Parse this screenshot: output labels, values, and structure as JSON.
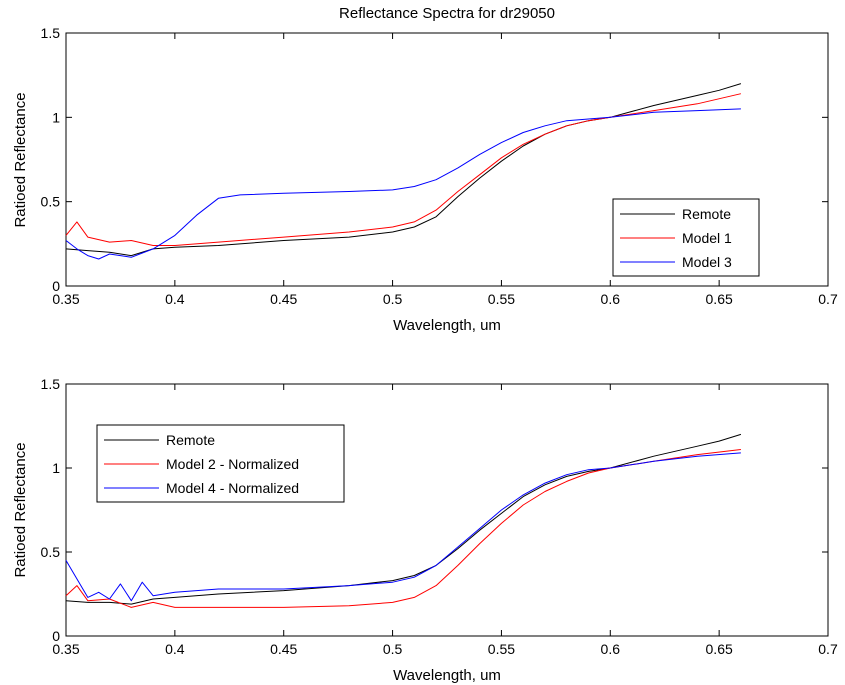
{
  "chart_data": [
    {
      "type": "line",
      "title": "Reflectance Spectra for dr29050",
      "xlabel": "Wavelength, um",
      "ylabel": "Ratioed Reflectance",
      "xlim": [
        0.35,
        0.7
      ],
      "ylim": [
        0,
        1.5
      ],
      "xticks": [
        "0.35",
        "0.4",
        "0.45",
        "0.5",
        "0.55",
        "0.6",
        "0.65",
        "0.7"
      ],
      "yticks": [
        "0",
        "0.5",
        "1",
        "1.5"
      ],
      "legend_position": "lower-right",
      "series": [
        {
          "name": "Remote",
          "color": "#000000",
          "x": [
            0.35,
            0.36,
            0.37,
            0.38,
            0.39,
            0.4,
            0.42,
            0.45,
            0.48,
            0.5,
            0.51,
            0.52,
            0.53,
            0.54,
            0.55,
            0.56,
            0.57,
            0.58,
            0.59,
            0.6,
            0.62,
            0.64,
            0.65,
            0.66
          ],
          "y": [
            0.22,
            0.21,
            0.2,
            0.18,
            0.22,
            0.23,
            0.24,
            0.27,
            0.29,
            0.32,
            0.35,
            0.41,
            0.53,
            0.64,
            0.74,
            0.83,
            0.9,
            0.95,
            0.98,
            1.0,
            1.07,
            1.13,
            1.16,
            1.2
          ]
        },
        {
          "name": "Model 1",
          "color": "#ff0000",
          "x": [
            0.35,
            0.355,
            0.36,
            0.37,
            0.38,
            0.39,
            0.4,
            0.42,
            0.45,
            0.48,
            0.5,
            0.51,
            0.52,
            0.53,
            0.54,
            0.55,
            0.56,
            0.57,
            0.58,
            0.59,
            0.6,
            0.62,
            0.64,
            0.66
          ],
          "y": [
            0.3,
            0.38,
            0.29,
            0.26,
            0.27,
            0.24,
            0.24,
            0.26,
            0.29,
            0.32,
            0.35,
            0.38,
            0.45,
            0.56,
            0.66,
            0.76,
            0.84,
            0.9,
            0.95,
            0.98,
            1.0,
            1.04,
            1.08,
            1.14
          ]
        },
        {
          "name": "Model 3",
          "color": "#0000ff",
          "x": [
            0.35,
            0.355,
            0.36,
            0.365,
            0.37,
            0.38,
            0.39,
            0.4,
            0.41,
            0.42,
            0.43,
            0.45,
            0.48,
            0.5,
            0.51,
            0.52,
            0.53,
            0.54,
            0.55,
            0.56,
            0.57,
            0.58,
            0.59,
            0.6,
            0.62,
            0.64,
            0.66
          ],
          "y": [
            0.27,
            0.22,
            0.18,
            0.16,
            0.19,
            0.17,
            0.22,
            0.3,
            0.42,
            0.52,
            0.54,
            0.55,
            0.56,
            0.57,
            0.59,
            0.63,
            0.7,
            0.78,
            0.85,
            0.91,
            0.95,
            0.98,
            0.99,
            1.0,
            1.03,
            1.04,
            1.05
          ]
        }
      ]
    },
    {
      "type": "line",
      "title": "",
      "xlabel": "Wavelength, um",
      "ylabel": "Ratioed Reflectance",
      "xlim": [
        0.35,
        0.7
      ],
      "ylim": [
        0,
        1.5
      ],
      "xticks": [
        "0.35",
        "0.4",
        "0.45",
        "0.5",
        "0.55",
        "0.6",
        "0.65",
        "0.7"
      ],
      "yticks": [
        "0",
        "0.5",
        "1",
        "1.5"
      ],
      "legend_position": "upper-left",
      "series": [
        {
          "name": "Remote",
          "color": "#000000",
          "x": [
            0.35,
            0.36,
            0.37,
            0.38,
            0.39,
            0.4,
            0.42,
            0.45,
            0.48,
            0.5,
            0.51,
            0.52,
            0.53,
            0.54,
            0.55,
            0.56,
            0.57,
            0.58,
            0.59,
            0.6,
            0.62,
            0.64,
            0.65,
            0.66
          ],
          "y": [
            0.21,
            0.2,
            0.2,
            0.19,
            0.22,
            0.23,
            0.25,
            0.27,
            0.3,
            0.33,
            0.36,
            0.42,
            0.52,
            0.63,
            0.73,
            0.83,
            0.9,
            0.95,
            0.98,
            1.0,
            1.07,
            1.13,
            1.16,
            1.2
          ]
        },
        {
          "name": "Model 2 - Normalized",
          "color": "#ff0000",
          "x": [
            0.35,
            0.355,
            0.36,
            0.37,
            0.38,
            0.39,
            0.4,
            0.42,
            0.45,
            0.48,
            0.5,
            0.51,
            0.52,
            0.53,
            0.54,
            0.55,
            0.56,
            0.57,
            0.58,
            0.59,
            0.6,
            0.62,
            0.64,
            0.66
          ],
          "y": [
            0.24,
            0.3,
            0.21,
            0.22,
            0.17,
            0.2,
            0.17,
            0.17,
            0.17,
            0.18,
            0.2,
            0.23,
            0.3,
            0.42,
            0.55,
            0.67,
            0.78,
            0.86,
            0.92,
            0.97,
            1.0,
            1.04,
            1.08,
            1.11
          ]
        },
        {
          "name": "Model 4 - Normalized",
          "color": "#0000ff",
          "x": [
            0.35,
            0.355,
            0.36,
            0.365,
            0.37,
            0.375,
            0.38,
            0.385,
            0.39,
            0.4,
            0.42,
            0.45,
            0.48,
            0.5,
            0.51,
            0.52,
            0.53,
            0.54,
            0.55,
            0.56,
            0.57,
            0.58,
            0.59,
            0.6,
            0.62,
            0.64,
            0.66
          ],
          "y": [
            0.45,
            0.34,
            0.23,
            0.26,
            0.22,
            0.31,
            0.21,
            0.32,
            0.24,
            0.26,
            0.28,
            0.28,
            0.3,
            0.32,
            0.35,
            0.42,
            0.53,
            0.64,
            0.75,
            0.84,
            0.91,
            0.96,
            0.99,
            1.0,
            1.04,
            1.07,
            1.09
          ]
        }
      ]
    }
  ]
}
